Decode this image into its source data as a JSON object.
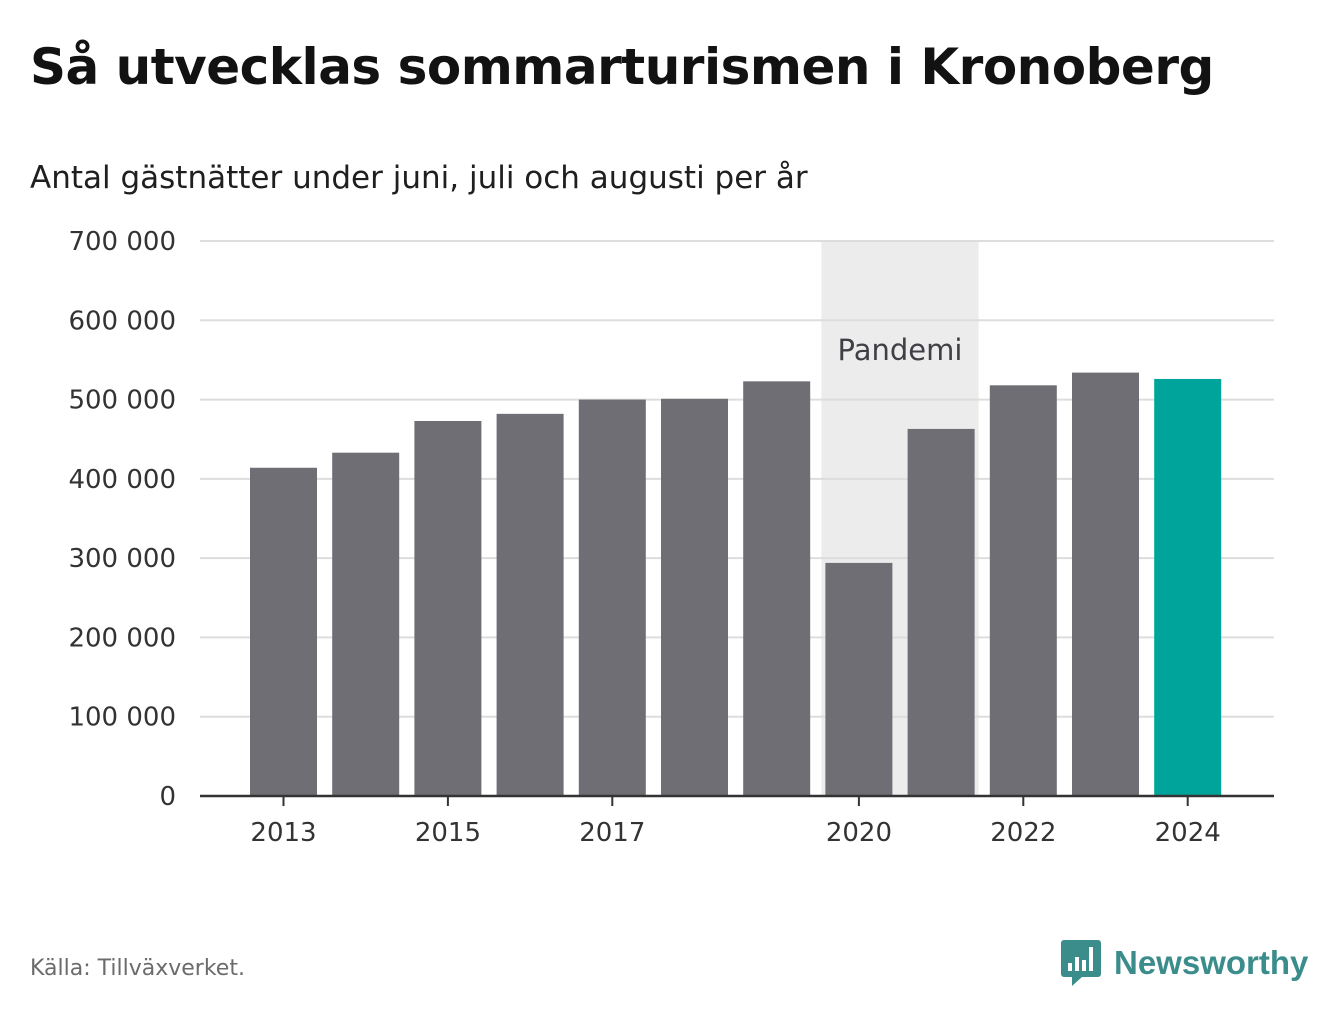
{
  "header": {
    "title": "Så utvecklas sommarturismen i Kronoberg",
    "subtitle": "Antal gästnätter under juni, juli och augusti per år"
  },
  "footer": {
    "source": "Källa: Tillväxverket.",
    "brand": "Newsworthy"
  },
  "colors": {
    "bar": "#6f6e74",
    "highlight": "#00a49a",
    "band": "#ececec",
    "grid": "#dddddd",
    "brand": "#3b8d8c"
  },
  "chart_data": {
    "type": "bar",
    "categories": [
      "2013",
      "2014",
      "2015",
      "2016",
      "2017",
      "2018",
      "2019",
      "2020",
      "2021",
      "2022",
      "2023",
      "2024"
    ],
    "values": [
      414000,
      433000,
      473000,
      482000,
      500000,
      501000,
      523000,
      294000,
      463000,
      518000,
      534000,
      526000
    ],
    "highlight_category": "2024",
    "x_tick_labels": [
      "2013",
      "2015",
      "2017",
      "2020",
      "2022",
      "2024"
    ],
    "y_ticks": [
      {
        "value": 0,
        "label": "0"
      },
      {
        "value": 100000,
        "label": "100 000"
      },
      {
        "value": 200000,
        "label": "200 000"
      },
      {
        "value": 300000,
        "label": "300 000"
      },
      {
        "value": 400000,
        "label": "400 000"
      },
      {
        "value": 500000,
        "label": "500 000"
      },
      {
        "value": 600000,
        "label": "600 000"
      },
      {
        "value": 700000,
        "label": "700 000"
      }
    ],
    "ylim": [
      0,
      700000
    ],
    "grid": true,
    "annotation_band": {
      "label": "Pandemi",
      "from": "2020",
      "to": "2021"
    }
  }
}
